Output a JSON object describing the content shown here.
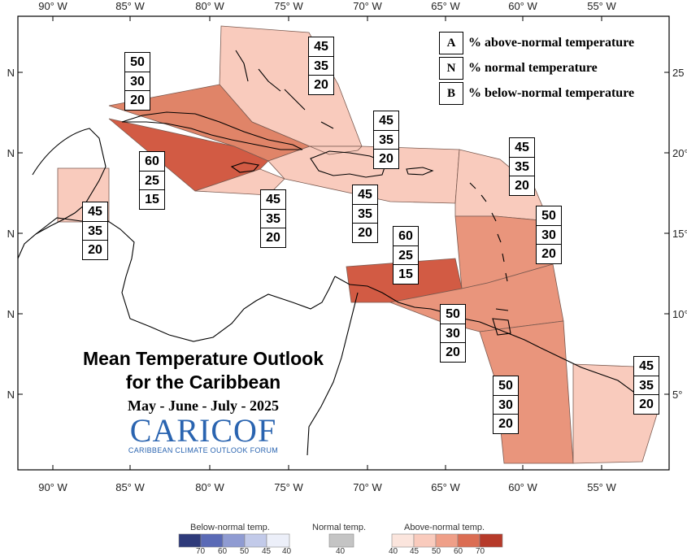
{
  "title": {
    "line1": "Mean Temperature Outlook",
    "line2": "for the Caribbean",
    "period": "May - June - July - 2025"
  },
  "logo": {
    "word_cari": "CARI",
    "word_cof": "COF",
    "subtitle": "CARIBBEAN CLIMATE OUTLOOK FORUM"
  },
  "axes": {
    "longitude_labels_top": [
      "90° W",
      "85° W",
      "80° W",
      "75° W",
      "70° W",
      "65° W",
      "60° W",
      "55° W"
    ],
    "longitude_labels_bottom": [
      "90° W",
      "85° W",
      "80° W",
      "75° W",
      "70° W",
      "65° W",
      "60° W",
      "55° W"
    ],
    "latitude_labels_left": [
      "N",
      "N",
      "N",
      "N",
      "N"
    ],
    "latitude_labels_right": [
      "25",
      "20°",
      "15°",
      "10°",
      "5°"
    ]
  },
  "key": {
    "items": [
      {
        "letter": "A",
        "text": "% above-normal temperature"
      },
      {
        "letter": "N",
        "text": "% normal temperature"
      },
      {
        "letter": "B",
        "text": "% below-normal temperature"
      }
    ]
  },
  "regions": [
    {
      "name": "bahamas",
      "above": "45",
      "normal": "35",
      "below": "20",
      "color": "#f9cbbd"
    },
    {
      "name": "cuba",
      "above": "50",
      "normal": "30",
      "below": "20",
      "color": "#e08468"
    },
    {
      "name": "cayman-jamaica",
      "above": "60",
      "normal": "25",
      "below": "15",
      "color": "#d25b44"
    },
    {
      "name": "belize",
      "above": "45",
      "normal": "35",
      "below": "20",
      "color": "#f9cbbd"
    },
    {
      "name": "southwest-caribbean",
      "above": "45",
      "normal": "35",
      "below": "20",
      "color": "#f9cbbd"
    },
    {
      "name": "hispaniola-puerto-rico",
      "above": "45",
      "normal": "35",
      "below": "20",
      "color": "#f9cbbd"
    },
    {
      "name": "turks-caicos",
      "above": "45",
      "normal": "35",
      "below": "20",
      "color": "#f9cbbd"
    },
    {
      "name": "leeward-islands",
      "above": "45",
      "normal": "35",
      "below": "20",
      "color": "#f9cbbd"
    },
    {
      "name": "windward-islands",
      "above": "50",
      "normal": "30",
      "below": "20",
      "color": "#e9957c"
    },
    {
      "name": "abc-islands",
      "above": "60",
      "normal": "25",
      "below": "15",
      "color": "#d25b44"
    },
    {
      "name": "trinidad",
      "above": "50",
      "normal": "30",
      "below": "20",
      "color": "#e9957c"
    },
    {
      "name": "guyana",
      "above": "50",
      "normal": "30",
      "below": "20",
      "color": "#e9957c"
    },
    {
      "name": "suriname-french-guiana",
      "above": "45",
      "normal": "35",
      "below": "20",
      "color": "#f9cbbd"
    }
  ],
  "scale": {
    "below": {
      "label": "Below-normal temp.",
      "ticks": [
        "70",
        "60",
        "50",
        "45",
        "40"
      ],
      "colors": [
        "#2e3a7a",
        "#5a6ab6",
        "#8f9bd2",
        "#c2cae9",
        "#eceff9"
      ]
    },
    "normal": {
      "label": "Normal temp.",
      "ticks": [
        "40"
      ],
      "colors": [
        "#c4c4c4"
      ]
    },
    "above": {
      "label": "Above-normal temp.",
      "ticks": [
        "40",
        "45",
        "50",
        "60",
        "70"
      ],
      "colors": [
        "#fbe5dd",
        "#f9cbbd",
        "#ef9f88",
        "#db6d53",
        "#b63a2a"
      ]
    }
  }
}
